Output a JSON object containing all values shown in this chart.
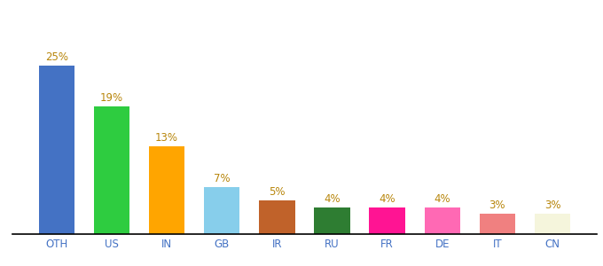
{
  "categories": [
    "OTH",
    "US",
    "IN",
    "GB",
    "IR",
    "RU",
    "FR",
    "DE",
    "IT",
    "CN"
  ],
  "values": [
    25,
    19,
    13,
    7,
    5,
    4,
    4,
    4,
    3,
    3
  ],
  "bar_colors": [
    "#4472C4",
    "#2ECC40",
    "#FFA500",
    "#87CEEB",
    "#C0622A",
    "#2E7D32",
    "#FF1493",
    "#FF69B4",
    "#F08080",
    "#F5F5DC"
  ],
  "label_color": "#B8860B",
  "x_label_color": "#4472C4",
  "background_color": "#FFFFFF",
  "ylim": [
    0,
    30
  ],
  "bar_width": 0.65,
  "label_fontsize": 8.5,
  "tick_fontsize": 8.5
}
